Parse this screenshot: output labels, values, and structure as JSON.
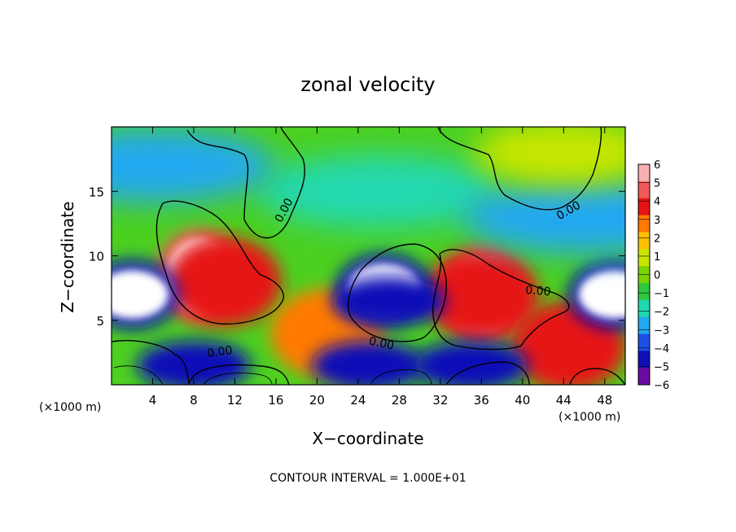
{
  "chart_data": {
    "type": "heatmap",
    "title": "zonal velocity",
    "xlabel": "X−coordinate",
    "ylabel": "Z−coordinate",
    "x_unit": "(×1000 m)",
    "x_unit_right": "(×1000 m)",
    "xlim": [
      0,
      50
    ],
    "ylim": [
      0,
      20
    ],
    "x_ticks": [
      "4",
      "8",
      "12",
      "16",
      "20",
      "24",
      "28",
      "32",
      "36",
      "40",
      "44",
      "48"
    ],
    "y_ticks": [
      "5",
      "10",
      "15"
    ],
    "colorbar": {
      "range": [
        -6,
        6
      ],
      "levels": [
        "6",
        "5",
        "4",
        "3",
        "2",
        "1",
        "0",
        "−1",
        "−2",
        "−3",
        "−4",
        "−5",
        "−6"
      ],
      "colors": [
        "#f7b0b0",
        "#f05a5a",
        "#e61414",
        "#ff7a00",
        "#ffc000",
        "#c8e600",
        "#7ad400",
        "#2ec83c",
        "#20d8b0",
        "#20a8f0",
        "#1e50e6",
        "#1010b8",
        "#6a0aa0"
      ]
    },
    "contour_labels": [
      "0.00",
      "0.00",
      "0.00",
      "0.00",
      "0.00"
    ],
    "contour_interval_label": "CONTOUR INTERVAL = 1.000E+01",
    "regions": [
      {
        "kind": "saturated_positive",
        "x": 8.5,
        "z": 8.5,
        "value": 6
      },
      {
        "kind": "positive",
        "x": 11,
        "z": 8,
        "value": 4.5
      },
      {
        "kind": "saturated_positive",
        "x": 36,
        "z": 7,
        "value": 6
      },
      {
        "kind": "positive",
        "x": 36,
        "z": 7,
        "value": 4.5
      },
      {
        "kind": "positive",
        "x": 44.5,
        "z": 3,
        "value": 4
      },
      {
        "kind": "positive",
        "x": 21,
        "z": 4,
        "value": 3
      },
      {
        "kind": "saturated_negative",
        "x": 26.5,
        "z": 7.5,
        "value": -6
      },
      {
        "kind": "negative",
        "x": 27,
        "z": 6.5,
        "value": -5
      },
      {
        "kind": "saturated_negative",
        "x": 2,
        "z": 7,
        "value": -6
      },
      {
        "kind": "saturated_negative",
        "x": 49,
        "z": 7,
        "value": -6
      },
      {
        "kind": "negative",
        "x": 25,
        "z": 1.5,
        "value": -5
      },
      {
        "kind": "negative",
        "x": 8,
        "z": 1.5,
        "value": -5
      },
      {
        "kind": "negative",
        "x": 35,
        "z": 1.5,
        "value": -5
      },
      {
        "kind": "cold",
        "x": 26,
        "z": 15,
        "value": -2
      },
      {
        "kind": "cold",
        "x": 46,
        "z": 13,
        "value": -3
      },
      {
        "kind": "cold",
        "x": 4,
        "z": 17,
        "value": -3
      },
      {
        "kind": "warm",
        "x": 44,
        "z": 18,
        "value": 1.5
      }
    ]
  }
}
